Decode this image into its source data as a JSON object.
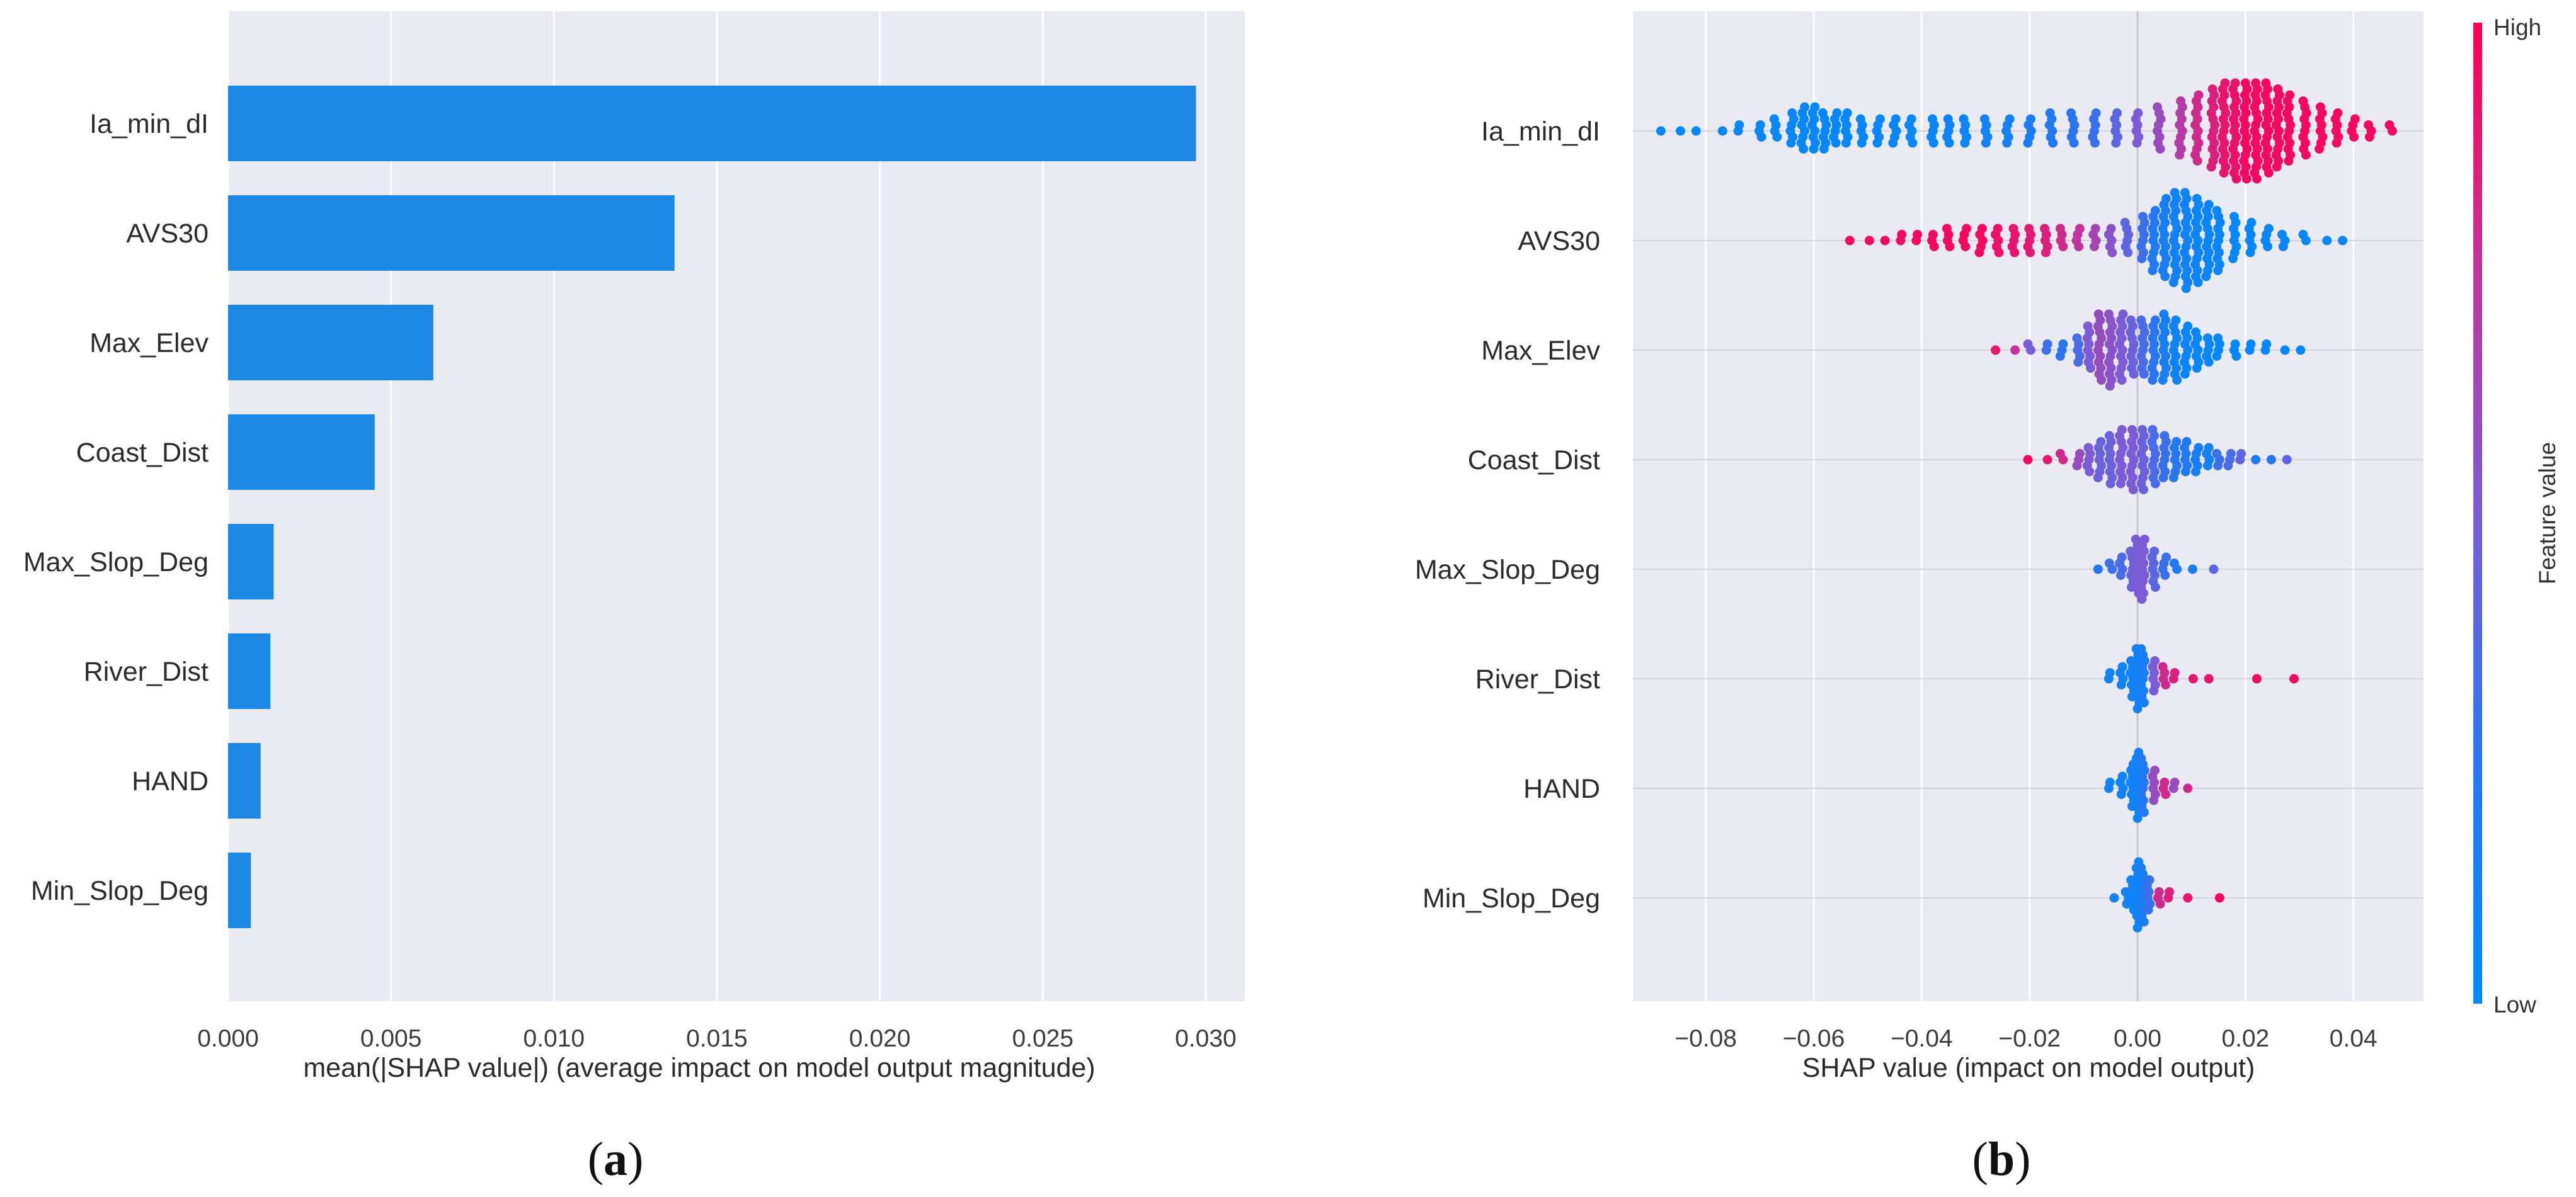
{
  "chart_data": [
    {
      "type": "bar",
      "orientation": "horizontal",
      "panel_label": {
        "open": "(",
        "letter": "a",
        "close": ")"
      },
      "xlabel": "mean(|SHAP value|) (average impact on model output magnitude)",
      "xlim": [
        0.0,
        0.0312
      ],
      "xticks": [
        "0.000",
        "0.005",
        "0.010",
        "0.015",
        "0.020",
        "0.025",
        "0.030"
      ],
      "xtick_values": [
        0.0,
        0.005,
        0.01,
        0.015,
        0.02,
        0.025,
        0.03
      ],
      "grid": true,
      "bar_color": "#1E88E5",
      "categories": [
        "Ia_min_dI",
        "AVS30",
        "Max_Elev",
        "Coast_Dist",
        "Max_Slop_Deg",
        "River_Dist",
        "HAND",
        "Min_Slop_Deg"
      ],
      "values": [
        0.0297,
        0.0137,
        0.0063,
        0.0045,
        0.0014,
        0.0013,
        0.001,
        0.0007
      ]
    },
    {
      "type": "scatter",
      "subtype": "beeswarm",
      "panel_label": {
        "open": "(",
        "letter": "b",
        "close": ")"
      },
      "xlabel": "SHAP value (impact on model output)",
      "xlim": [
        -0.0935,
        0.053
      ],
      "xticks": [
        "−0.08",
        "−0.06",
        "−0.04",
        "−0.02",
        "0.00",
        "0.02",
        "0.04"
      ],
      "xtick_values": [
        -0.08,
        -0.06,
        -0.04,
        -0.02,
        0.0,
        0.02,
        0.04
      ],
      "grid": true,
      "colorbar": {
        "title": "Feature value",
        "high_label": "High",
        "low_label": "Low",
        "low_color": "#008BFB",
        "high_color": "#FF0051"
      },
      "categories": [
        "Ia_min_dI",
        "AVS30",
        "Max_Elev",
        "Coast_Dist",
        "Max_Slop_Deg",
        "River_Dist",
        "HAND",
        "Min_Slop_Deg"
      ],
      "series": [
        {
          "feature": "Ia_min_dI",
          "x": [
            -0.088,
            -0.085,
            -0.082,
            -0.077,
            -0.074,
            -0.07,
            -0.067,
            -0.064,
            -0.062,
            -0.06,
            -0.058,
            -0.056,
            -0.054,
            -0.051,
            -0.048,
            -0.045,
            -0.042,
            -0.038,
            -0.035,
            -0.032,
            -0.028,
            -0.024,
            -0.02,
            -0.016,
            -0.012,
            -0.008,
            -0.004,
            0.0,
            0.004,
            0.008,
            0.011,
            0.014,
            0.016,
            0.018,
            0.02,
            0.022,
            0.024,
            0.026,
            0.028,
            0.031,
            0.034,
            0.037,
            0.04,
            0.043,
            0.047
          ],
          "color": [
            0.05,
            0.05,
            0.05,
            0.05,
            0.05,
            0.05,
            0.05,
            0.05,
            0.05,
            0.05,
            0.05,
            0.05,
            0.05,
            0.05,
            0.05,
            0.05,
            0.05,
            0.05,
            0.08,
            0.08,
            0.1,
            0.12,
            0.15,
            0.2,
            0.25,
            0.3,
            0.4,
            0.5,
            0.6,
            0.7,
            0.8,
            0.85,
            0.9,
            0.92,
            0.95,
            0.95,
            0.95,
            0.95,
            0.95,
            0.95,
            0.95,
            0.95,
            0.95,
            0.95,
            0.95
          ],
          "count": [
            1,
            1,
            1,
            1,
            2,
            3,
            4,
            6,
            8,
            8,
            7,
            6,
            6,
            5,
            5,
            5,
            5,
            5,
            5,
            5,
            5,
            5,
            5,
            6,
            6,
            6,
            6,
            6,
            8,
            10,
            12,
            14,
            16,
            17,
            17,
            17,
            16,
            14,
            12,
            10,
            8,
            6,
            4,
            3,
            2
          ]
        },
        {
          "feature": "AVS30",
          "x": [
            -0.053,
            -0.05,
            -0.047,
            -0.044,
            -0.041,
            -0.038,
            -0.035,
            -0.032,
            -0.029,
            -0.026,
            -0.023,
            -0.02,
            -0.017,
            -0.014,
            -0.011,
            -0.008,
            -0.005,
            -0.002,
            0.001,
            0.003,
            0.005,
            0.007,
            0.009,
            0.011,
            0.013,
            0.015,
            0.018,
            0.021,
            0.024,
            0.027,
            0.031,
            0.035,
            0.038
          ],
          "color": [
            0.95,
            0.95,
            0.95,
            0.95,
            0.95,
            0.95,
            0.95,
            0.95,
            0.95,
            0.92,
            0.9,
            0.88,
            0.85,
            0.8,
            0.75,
            0.65,
            0.55,
            0.4,
            0.3,
            0.2,
            0.15,
            0.12,
            0.1,
            0.08,
            0.07,
            0.06,
            0.05,
            0.05,
            0.05,
            0.05,
            0.05,
            0.05,
            0.05
          ],
          "count": [
            1,
            1,
            1,
            2,
            2,
            3,
            4,
            4,
            5,
            5,
            5,
            5,
            5,
            4,
            4,
            4,
            5,
            6,
            8,
            11,
            14,
            16,
            17,
            15,
            13,
            11,
            8,
            6,
            4,
            3,
            2,
            1,
            1
          ]
        },
        {
          "feature": "Max_Elev",
          "x": [
            -0.026,
            -0.023,
            -0.02,
            -0.017,
            -0.014,
            -0.011,
            -0.009,
            -0.007,
            -0.005,
            -0.003,
            -0.001,
            0.001,
            0.003,
            0.005,
            0.007,
            0.009,
            0.011,
            0.013,
            0.015,
            0.018,
            0.021,
            0.024,
            0.027,
            0.03
          ],
          "color": [
            0.9,
            0.75,
            0.5,
            0.3,
            0.25,
            0.35,
            0.5,
            0.6,
            0.55,
            0.5,
            0.45,
            0.35,
            0.25,
            0.15,
            0.1,
            0.08,
            0.07,
            0.06,
            0.05,
            0.05,
            0.05,
            0.05,
            0.05,
            0.05
          ],
          "count": [
            1,
            1,
            2,
            2,
            3,
            5,
            8,
            12,
            13,
            12,
            10,
            10,
            11,
            12,
            11,
            9,
            7,
            5,
            4,
            3,
            2,
            2,
            1,
            1
          ]
        },
        {
          "feature": "Coast_Dist",
          "x": [
            -0.02,
            -0.017,
            -0.014,
            -0.011,
            -0.009,
            -0.007,
            -0.005,
            -0.003,
            -0.001,
            0.001,
            0.003,
            0.005,
            0.007,
            0.009,
            0.011,
            0.013,
            0.015,
            0.017,
            0.019,
            0.022,
            0.025,
            0.028
          ],
          "color": [
            0.95,
            0.9,
            0.8,
            0.6,
            0.5,
            0.45,
            0.45,
            0.5,
            0.5,
            0.45,
            0.35,
            0.3,
            0.25,
            0.2,
            0.15,
            0.12,
            0.3,
            0.35,
            0.4,
            0.2,
            0.25,
            0.4
          ],
          "count": [
            1,
            1,
            2,
            3,
            5,
            7,
            9,
            10,
            11,
            11,
            10,
            8,
            7,
            6,
            5,
            4,
            3,
            3,
            2,
            1,
            1,
            1
          ]
        },
        {
          "feature": "Max_Slop_Deg",
          "x": [
            -0.007,
            -0.005,
            -0.003,
            -0.001,
            0.0,
            0.001,
            0.003,
            0.005,
            0.007,
            0.01,
            0.014
          ],
          "color": [
            0.2,
            0.3,
            0.35,
            0.45,
            0.5,
            0.5,
            0.4,
            0.3,
            0.2,
            0.15,
            0.4
          ],
          "count": [
            1,
            2,
            4,
            7,
            10,
            11,
            7,
            4,
            2,
            1,
            1
          ]
        },
        {
          "feature": "River_Dist",
          "x": [
            -0.005,
            -0.003,
            -0.001,
            0.0,
            0.001,
            0.003,
            0.005,
            0.007,
            0.01,
            0.013,
            0.022,
            0.029
          ],
          "color": [
            0.1,
            0.1,
            0.1,
            0.1,
            0.15,
            0.5,
            0.8,
            0.85,
            0.9,
            0.9,
            0.95,
            0.95
          ],
          "count": [
            2,
            4,
            7,
            11,
            10,
            6,
            4,
            2,
            1,
            1,
            1,
            1
          ]
        },
        {
          "feature": "HAND",
          "x": [
            -0.005,
            -0.003,
            -0.001,
            0.0,
            0.001,
            0.003,
            0.005,
            0.007,
            0.009
          ],
          "color": [
            0.1,
            0.1,
            0.1,
            0.1,
            0.2,
            0.6,
            0.8,
            0.6,
            0.8
          ],
          "count": [
            2,
            4,
            8,
            12,
            10,
            6,
            3,
            2,
            1
          ]
        },
        {
          "feature": "Min_Slop_Deg",
          "x": [
            -0.004,
            -0.002,
            -0.001,
            0.0,
            0.001,
            0.002,
            0.004,
            0.006,
            0.009,
            0.015
          ],
          "color": [
            0.1,
            0.1,
            0.1,
            0.1,
            0.15,
            0.3,
            0.8,
            0.85,
            0.9,
            0.95
          ],
          "count": [
            1,
            3,
            6,
            12,
            10,
            6,
            3,
            2,
            1,
            1
          ]
        }
      ]
    }
  ]
}
